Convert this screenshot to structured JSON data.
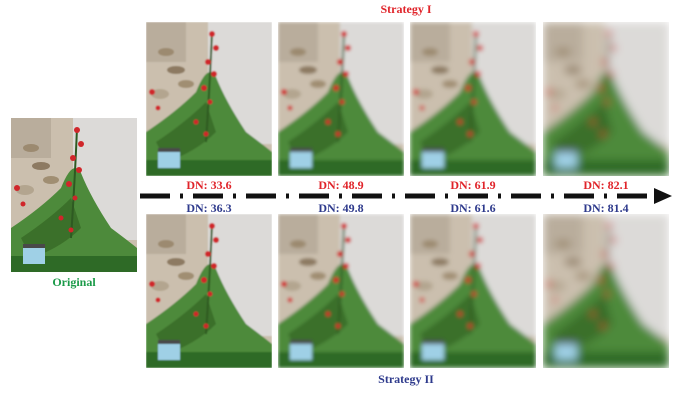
{
  "original": {
    "label": "Original"
  },
  "strategy_1": {
    "title": "Strategy I",
    "dn": [
      "DN: 33.6",
      "DN: 48.9",
      "DN: 61.9",
      "DN: 82.1"
    ]
  },
  "strategy_2": {
    "title": "Strategy II",
    "dn": [
      "DN: 36.3",
      "DN: 49.8",
      "DN: 61.6",
      "DN: 81.4"
    ]
  }
}
